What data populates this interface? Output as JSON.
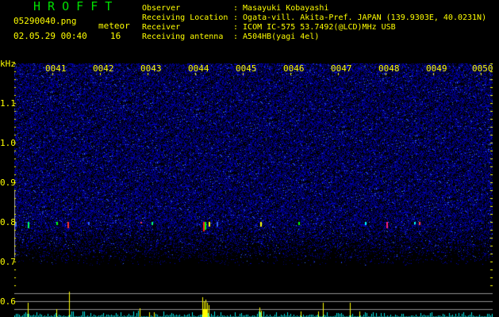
{
  "app_title": "H R O F F T",
  "file_name": "05290040.png",
  "datetime": "02.05.29 00:40",
  "meteor_label": "meteor",
  "meteor_count": "16",
  "info": [
    {
      "label": "Observer",
      "value": ": Masayuki Kobayashi"
    },
    {
      "label": "Receiving Location",
      "value": ": Ogata-vill. Akita-Pref. JAPAN (139.9303E, 40.0231N)"
    },
    {
      "label": "Receiver",
      "value": ": ICOM IC-575 53.7492(@LCD)MHz USB"
    },
    {
      "label": "Receiving antenna",
      "value": ": A504HB(yagi 4el)"
    }
  ],
  "y_unit": "kHz",
  "y_ticks": [
    "1.1",
    "1.0",
    "0.9",
    "0.8",
    "0.7",
    "0.6"
  ],
  "time_labels": [
    "0041",
    "0042",
    "0043",
    "0044",
    "0045",
    "0046",
    "0047",
    "0048",
    "0049",
    "0050"
  ],
  "colors": {
    "text": "#ffff00",
    "title": "#00e000",
    "noise": "#1010c0",
    "count_bar": "#00e0e0",
    "meteor_bar": "#ffff00"
  }
}
